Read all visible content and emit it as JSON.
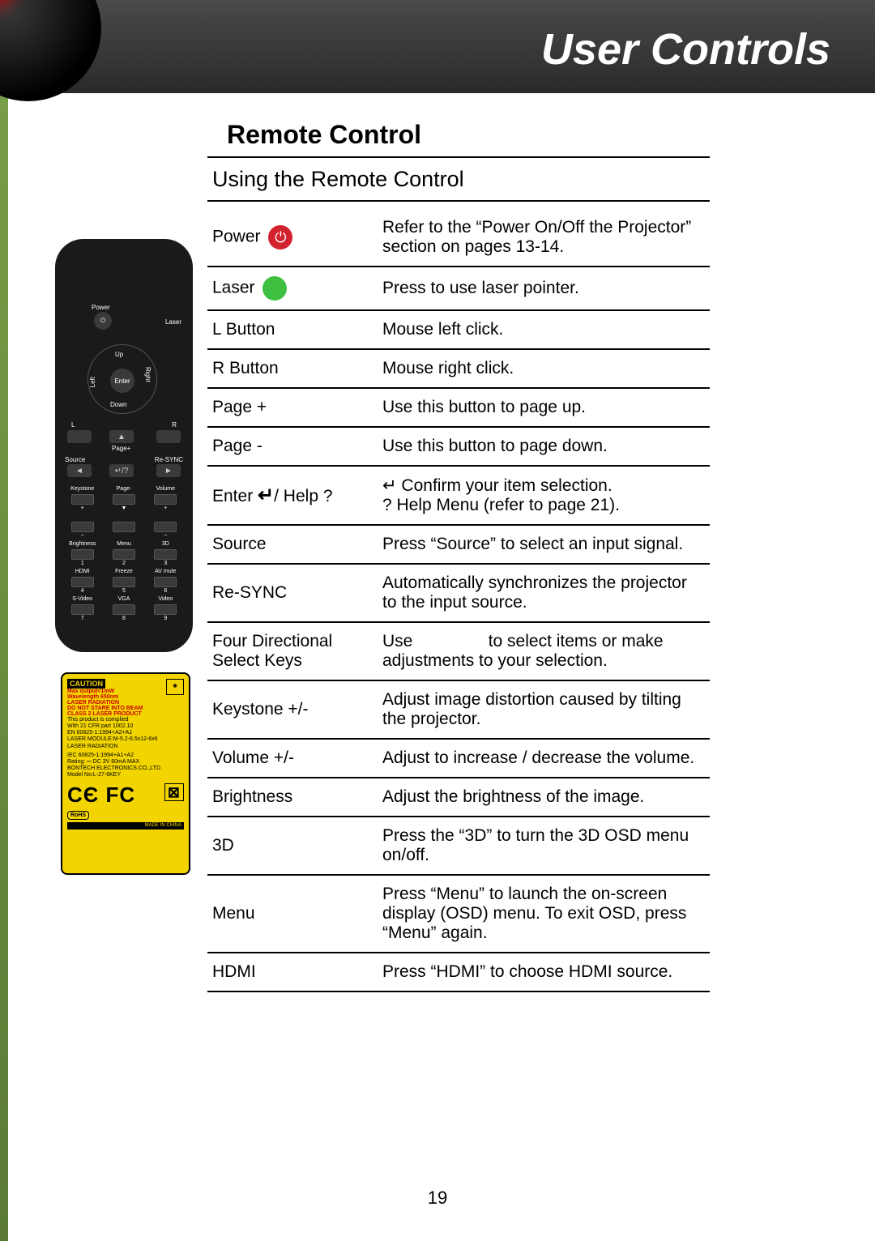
{
  "header": {
    "title": "User Controls"
  },
  "section": {
    "title": "Remote Control",
    "subtitle": "Using the Remote Control"
  },
  "rows": [
    {
      "label": "Power",
      "desc": "Refer to the “Power On/Off the Projector” section on pages 13-14.",
      "icon": "power"
    },
    {
      "label": "Laser",
      "desc": "Press to use laser pointer.",
      "icon": "laser"
    },
    {
      "label": "L Button",
      "desc": "Mouse left click."
    },
    {
      "label": "R Button",
      "desc": "Mouse right click."
    },
    {
      "label": "Page +",
      "desc": "Use this button to page up."
    },
    {
      "label": "Page -",
      "desc": "Use this button to page down."
    },
    {
      "label": "Enter ↵ / Help ?",
      "desc_html": true,
      "desc": "↵ Confirm your item selection.<br>? Help Menu (refer to page 21).",
      "label_html": true,
      "label_render": "Enter <span class='enter-sym'>↵</span>/ Help ?"
    },
    {
      "label": "Source",
      "desc": "Press “Source” to select an input signal."
    },
    {
      "label": "Re-SYNC",
      "desc": "Automatically synchronizes the projector to the input source."
    },
    {
      "label": "Four Directional Select Keys",
      "desc": "Use                to select items or make adjustments to your selection."
    },
    {
      "label": "Keystone +/-",
      "desc": "Adjust image distortion caused by tilting the projector."
    },
    {
      "label": "Volume +/-",
      "desc": "Adjust to increase / decrease the volume."
    },
    {
      "label": "Brightness",
      "desc": "Adjust the brightness of the image."
    },
    {
      "label": "3D",
      "desc": "Press the “3D” to turn the 3D OSD menu on/off."
    },
    {
      "label": "Menu",
      "desc": "Press “Menu” to launch the on-screen display (OSD) menu. To exit OSD, press “Menu” again."
    },
    {
      "label": "HDMI",
      "desc": "Press “HDMI” to choose HDMI source."
    }
  ],
  "page_num": "19",
  "colors": {
    "header_bg": "#2a2a2a",
    "power_red": "#d2222d",
    "laser_green": "#3fbf3f",
    "caution_bg": "#f2d500",
    "edge_green": "#7aa04a"
  },
  "remote": {
    "top_labels": [
      "Power",
      "Laser"
    ],
    "nav": [
      "Up",
      "Down",
      "Left",
      "Right",
      "Enter"
    ],
    "mid": [
      "L",
      "R",
      "Page+",
      "Source",
      "Re-SYNC",
      "↵/?",
      "◄",
      "►",
      "▲",
      "▼",
      "Page-"
    ],
    "grid_labels": [
      "Keystone",
      "Page-",
      "Volume",
      "Brightness",
      "Menu",
      "3D",
      "HDMI",
      "Freeze",
      "AV mute",
      "S-Video",
      "VGA",
      "Video"
    ],
    "grid_nums": [
      "+",
      "▼",
      "+",
      "−",
      "",
      "−",
      "1",
      "2",
      "3",
      "4",
      "5",
      "6",
      "7",
      "8",
      "9"
    ]
  },
  "caution": {
    "header": "CAUTION",
    "warn1": "Max output<1mW",
    "warn2": "Wavelength 650nm",
    "warn3": "LASER RADIATION",
    "warn4": "DO NOT STARE INTO BEAM",
    "warn5": "CLASS 2 LASER PRODUCT",
    "comp1": "This product is complied",
    "comp2": "With 21 CFR part 1002.10",
    "comp3": "EN 60825-1:1994+A2+A1",
    "comp4": "LASER MODULE:M-5.2-6.5x12-6x6",
    "comp5": "LASER RADIATION",
    "iec": "IEC 60825-1:1994+A1+A2",
    "rating": "Rating: ⎓ DC 3V 60mA MAX",
    "maker": "BONTECH ELECTRONICS CO.,LTD.",
    "model": "Model No:L-27-6KEY",
    "ce_fc": "CЄ FC",
    "rohs": "RoHS",
    "made": "MADE IN CHINA"
  }
}
